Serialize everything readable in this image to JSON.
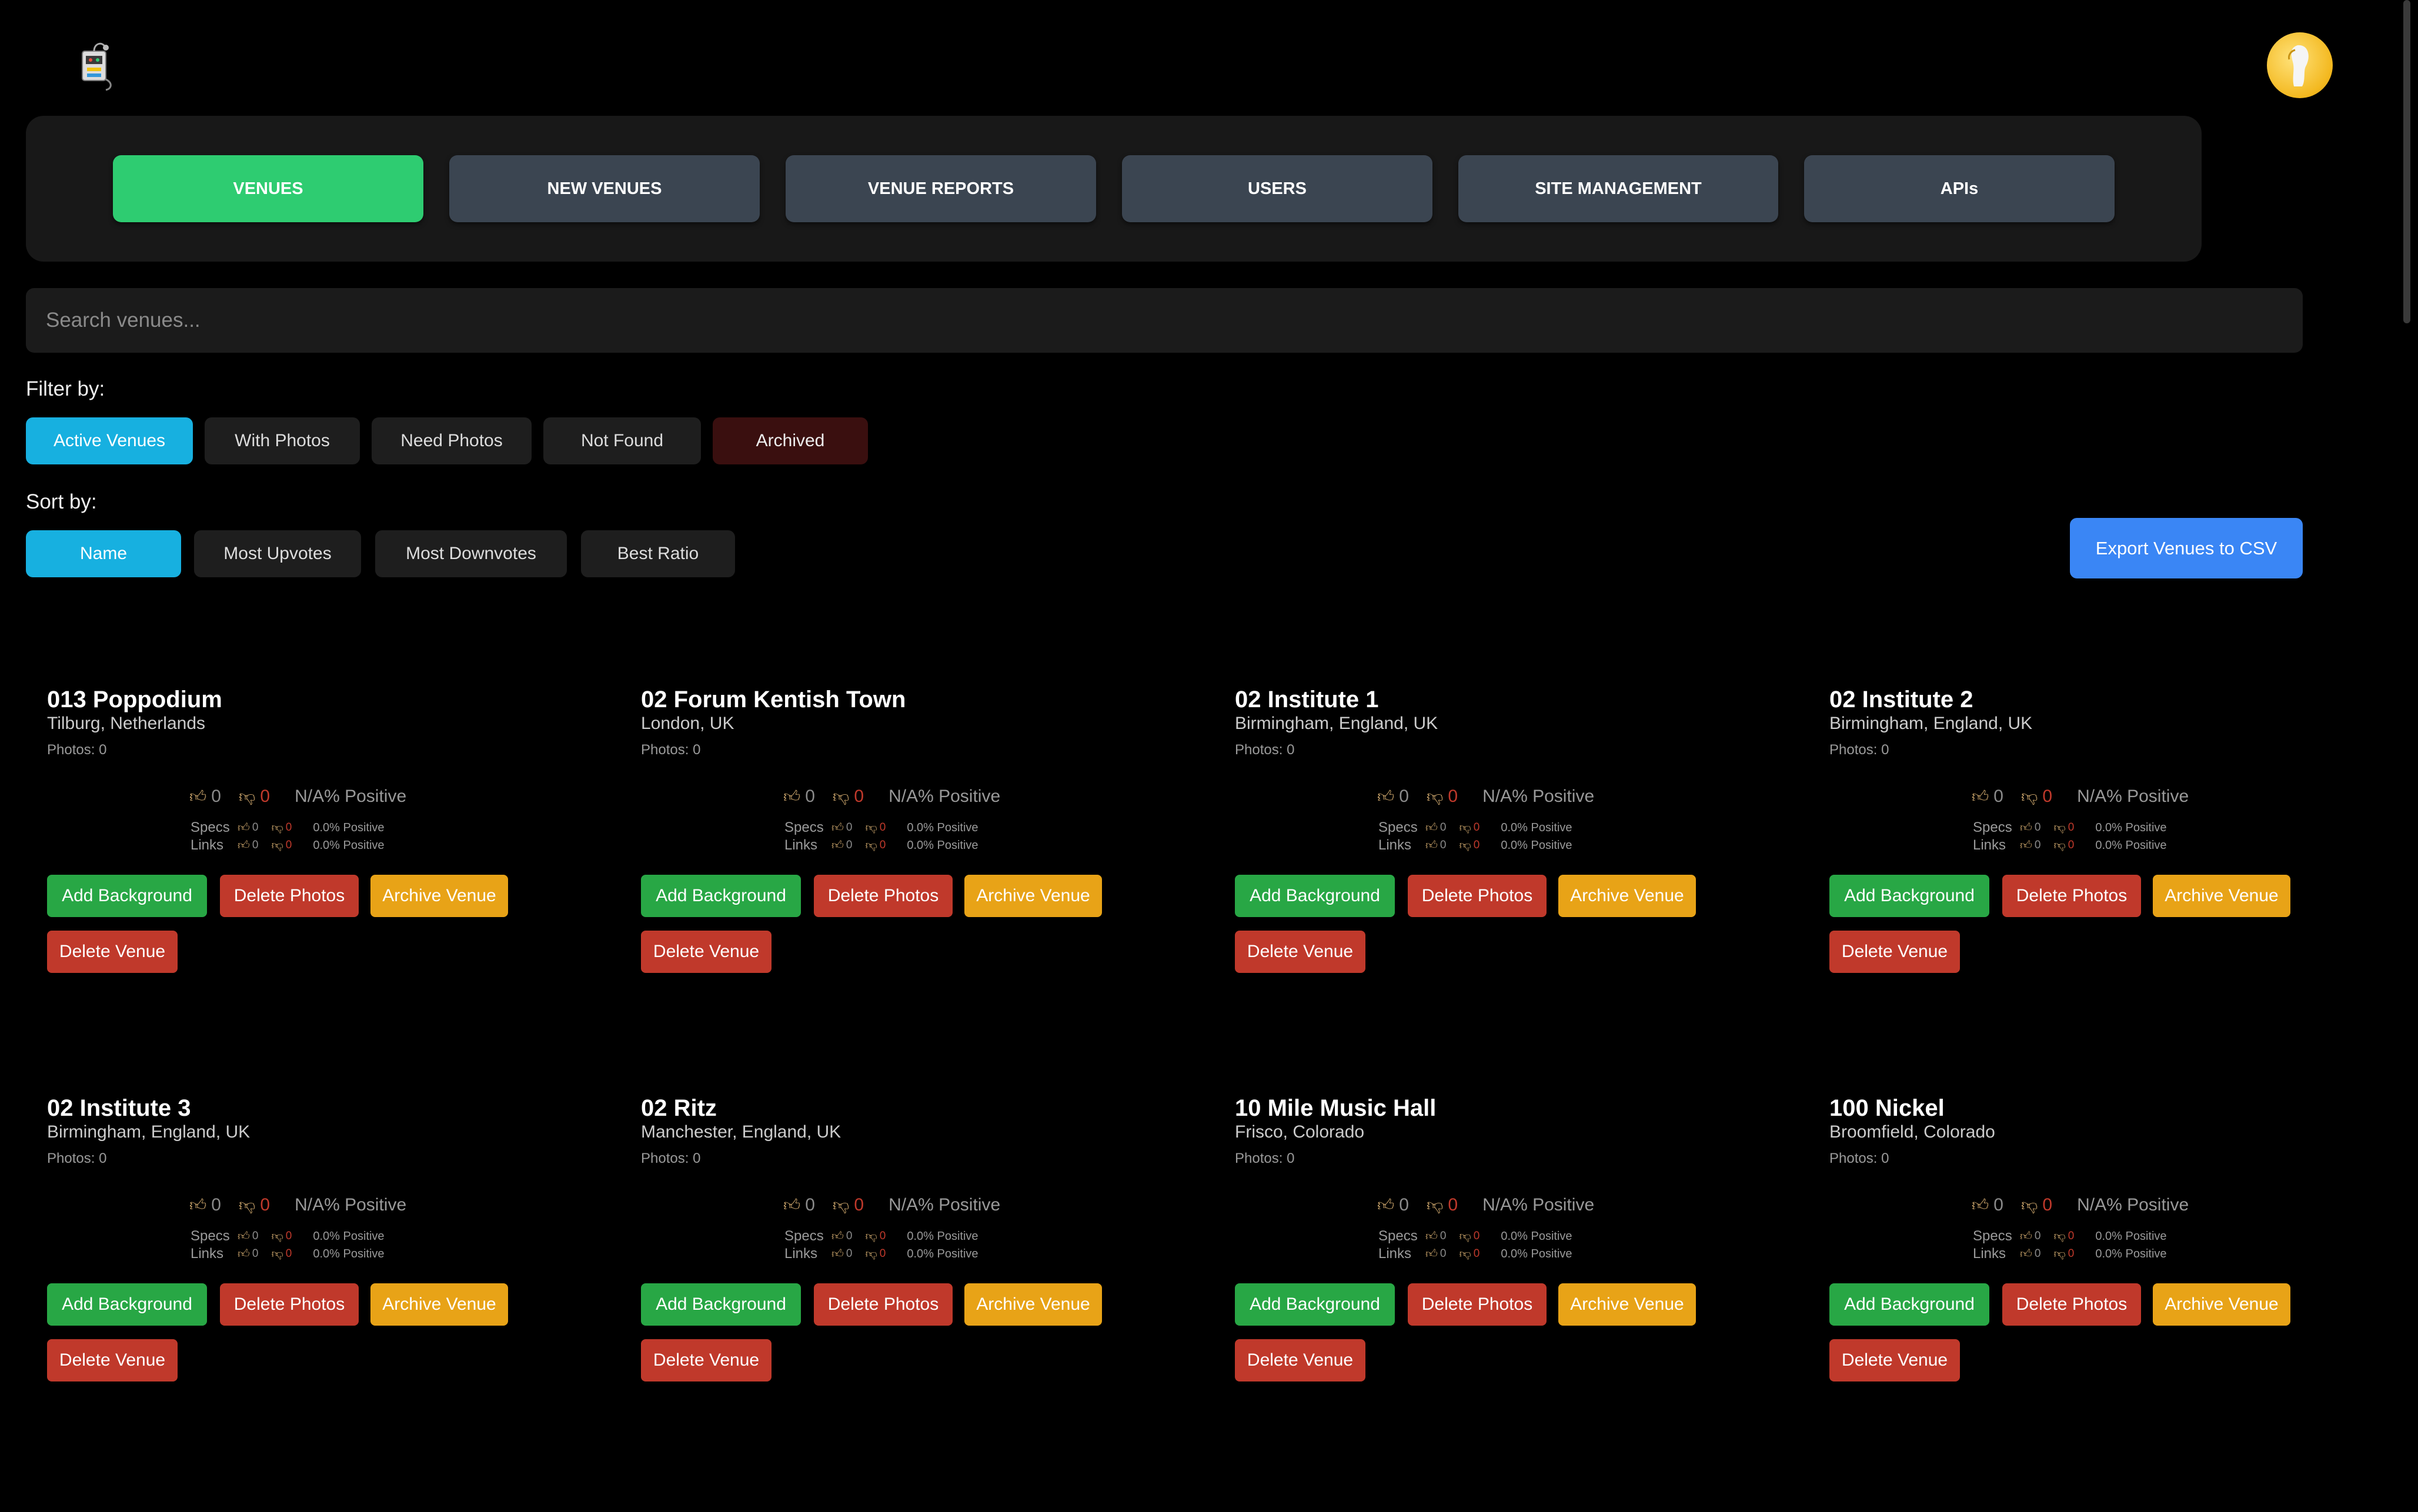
{
  "app": {
    "logo_icon": "venue-robot-logo-icon",
    "avatar_icon": "user-avatar-icon"
  },
  "nav": {
    "tabs": [
      {
        "label": "VENUES",
        "active": true
      },
      {
        "label": "NEW VENUES",
        "active": false
      },
      {
        "label": "VENUE REPORTS",
        "active": false
      },
      {
        "label": "USERS",
        "active": false
      },
      {
        "label": "SITE MANAGEMENT",
        "active": false
      },
      {
        "label": "APIs",
        "active": false
      }
    ]
  },
  "search": {
    "placeholder": "Search venues...",
    "value": ""
  },
  "filters": {
    "label": "Filter by:",
    "items": [
      "Active Venues",
      "With Photos",
      "Need Photos",
      "Not Found",
      "Archived"
    ],
    "active": "Active Venues"
  },
  "sort": {
    "label": "Sort by:",
    "items": [
      "Name",
      "Most Upvotes",
      "Most Downvotes",
      "Best Ratio"
    ],
    "active": "Name"
  },
  "export_label": "Export Venues to CSV",
  "colors": {
    "accent_green": "#2ecc71",
    "accent_blue": "#17b0e0",
    "export_blue": "#3a86f5",
    "danger_red": "#c0392b",
    "warning_orange": "#e8a317"
  },
  "card_labels": {
    "photos_prefix": "Photos:",
    "specs": "Specs",
    "links": "Links",
    "add_background": "Add Background",
    "delete_photos": "Delete Photos",
    "archive_venue": "Archive Venue",
    "delete_venue": "Delete Venue"
  },
  "venues": [
    {
      "name": "013 Poppodium",
      "location": "Tilburg, Netherlands",
      "photos": "0",
      "up": "0",
      "down": "0",
      "positive": "N/A% Positive",
      "specs_up": "0",
      "specs_down": "0",
      "specs_pct": "0.0% Positive",
      "links_up": "0",
      "links_down": "0",
      "links_pct": "0.0% Positive"
    },
    {
      "name": "02 Forum Kentish Town",
      "location": "London, UK",
      "photos": "0",
      "up": "0",
      "down": "0",
      "positive": "N/A% Positive",
      "specs_up": "0",
      "specs_down": "0",
      "specs_pct": "0.0% Positive",
      "links_up": "0",
      "links_down": "0",
      "links_pct": "0.0% Positive"
    },
    {
      "name": "02 Institute 1",
      "location": "Birmingham, England, UK",
      "photos": "0",
      "up": "0",
      "down": "0",
      "positive": "N/A% Positive",
      "specs_up": "0",
      "specs_down": "0",
      "specs_pct": "0.0% Positive",
      "links_up": "0",
      "links_down": "0",
      "links_pct": "0.0% Positive"
    },
    {
      "name": "02 Institute 2",
      "location": "Birmingham, England, UK",
      "photos": "0",
      "up": "0",
      "down": "0",
      "positive": "N/A% Positive",
      "specs_up": "0",
      "specs_down": "0",
      "specs_pct": "0.0% Positive",
      "links_up": "0",
      "links_down": "0",
      "links_pct": "0.0% Positive"
    },
    {
      "name": "02 Institute 3",
      "location": "Birmingham, England, UK",
      "photos": "0",
      "up": "0",
      "down": "0",
      "positive": "N/A% Positive",
      "specs_up": "0",
      "specs_down": "0",
      "specs_pct": "0.0% Positive",
      "links_up": "0",
      "links_down": "0",
      "links_pct": "0.0% Positive"
    },
    {
      "name": "02 Ritz",
      "location": "Manchester, England, UK",
      "photos": "0",
      "up": "0",
      "down": "0",
      "positive": "N/A% Positive",
      "specs_up": "0",
      "specs_down": "0",
      "specs_pct": "0.0% Positive",
      "links_up": "0",
      "links_down": "0",
      "links_pct": "0.0% Positive"
    },
    {
      "name": "10 Mile Music Hall",
      "location": "Frisco, Colorado",
      "photos": "0",
      "up": "0",
      "down": "0",
      "positive": "N/A% Positive",
      "specs_up": "0",
      "specs_down": "0",
      "specs_pct": "0.0% Positive",
      "links_up": "0",
      "links_down": "0",
      "links_pct": "0.0% Positive"
    },
    {
      "name": "100 Nickel",
      "location": "Broomfield, Colorado",
      "photos": "0",
      "up": "0",
      "down": "0",
      "positive": "N/A% Positive",
      "specs_up": "0",
      "specs_down": "0",
      "specs_pct": "0.0% Positive",
      "links_up": "0",
      "links_down": "0",
      "links_pct": "0.0% Positive"
    }
  ]
}
